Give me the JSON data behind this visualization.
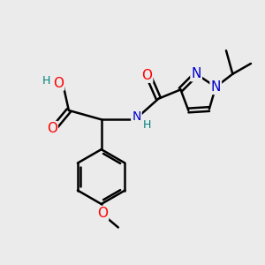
{
  "bg_color": "#ebebeb",
  "bond_color": "#000000",
  "bond_width": 1.8,
  "atom_colors": {
    "O": "#ff0000",
    "N": "#0000cc",
    "H": "#008080",
    "C": "#000000"
  },
  "font_size": 10,
  "figsize": [
    3.0,
    3.0
  ],
  "dpi": 100
}
